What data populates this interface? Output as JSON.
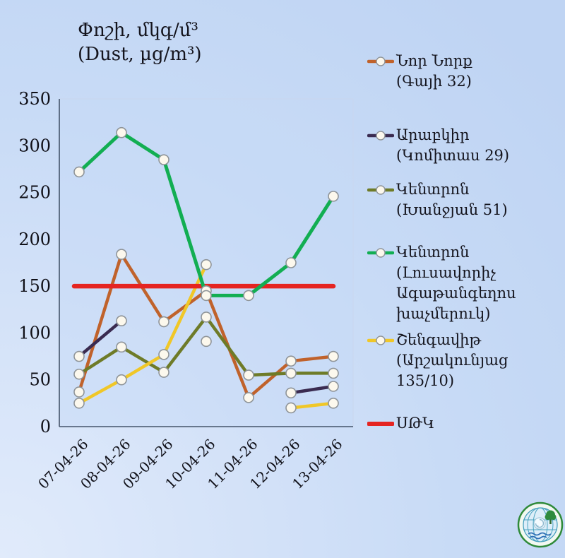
{
  "title": {
    "line1": "Փոշի, մկգ/մ³",
    "line2": "(Dust, µg/m³)"
  },
  "chart_data": {
    "type": "line",
    "x": [
      "07-04-26",
      "08-04-26",
      "09-04-26",
      "10-04-26",
      "11-04-26",
      "12-04-26",
      "13-04-26"
    ],
    "yticks": [
      0,
      50,
      100,
      150,
      200,
      250,
      300,
      350
    ],
    "ylim": [
      0,
      350
    ],
    "grid": false,
    "legend_position": "right",
    "threshold_value": 150,
    "series": [
      {
        "name": "Նոր Նորք (Գայի 32)",
        "legend_lines": [
          "Նոր Նորք",
          "(Գայի 32)"
        ],
        "color": "#C0622B",
        "marker": true,
        "values": [
          37,
          184,
          112,
          145,
          31,
          70,
          75
        ]
      },
      {
        "name": "Արաբկիր (Կոմիտաս 29)",
        "legend_lines": [
          "Արաբկիր",
          "(Կոմիտաս 29)"
        ],
        "color": "#3A2B50",
        "marker": true,
        "values": [
          75,
          113,
          null,
          91,
          null,
          36,
          43
        ]
      },
      {
        "name": "Կենտրոն (Խանջյան 51)",
        "legend_lines": [
          "Կենտրոն",
          "(Խանջյան 51)"
        ],
        "color": "#6E7B28",
        "marker": true,
        "values": [
          56,
          85,
          58,
          117,
          55,
          57,
          57
        ]
      },
      {
        "name": "Կենտրոն (Լուսավորիչ Ագաթանգեղոս խաչմերուկ)",
        "legend_lines": [
          "Կենտրոն (Լուսավորիչ",
          "Ագաթանգեղոս",
          "խաչմերուկ)"
        ],
        "color": "#12AE52",
        "marker": true,
        "values": [
          272,
          314,
          285,
          140,
          140,
          175,
          246
        ]
      },
      {
        "name": "Շենգավիթ (Արշակունյաց 135/10)",
        "legend_lines": [
          "Շենգավիթ",
          "(Արշակունյաց 135/10)"
        ],
        "color": "#F0C728",
        "marker": true,
        "values": [
          25,
          50,
          77,
          173,
          null,
          20,
          25
        ]
      },
      {
        "name": "ՍԹԿ",
        "legend_lines": [
          "ՍԹԿ"
        ],
        "color": "#E52421",
        "marker": false,
        "style": "threshold",
        "values": [
          150,
          150,
          150,
          150,
          150,
          150,
          150
        ]
      }
    ]
  }
}
